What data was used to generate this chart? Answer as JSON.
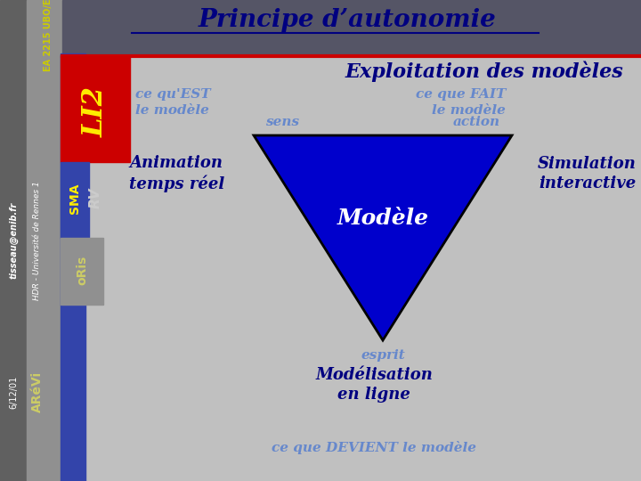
{
  "title": "Principe d’autonomie",
  "subtitle": "Exploitation des modèles",
  "bg_main": "#c0c0c0",
  "triangle_color": "#0000cc",
  "triangle_outline": "#000000",
  "text_light_blue": "#6688cc",
  "text_dark_blue": "#000080",
  "modele_text": "Modèle",
  "sens_label": "sens",
  "action_label": "action",
  "esprit_label": "esprit",
  "title_color": "#000080",
  "subtitle_color": "#000080",
  "li2_color": "#ffee00",
  "sma_color": "#ffee00",
  "oris_color": "#cccc66",
  "arevi_color": "#cccc66",
  "ea_color": "#cccc00",
  "sidebar_dark": "#606060",
  "sidebar_mid": "#909090",
  "bar_blue": "#3344aa",
  "bar_red": "#cc0000",
  "header_dark": "#555566"
}
